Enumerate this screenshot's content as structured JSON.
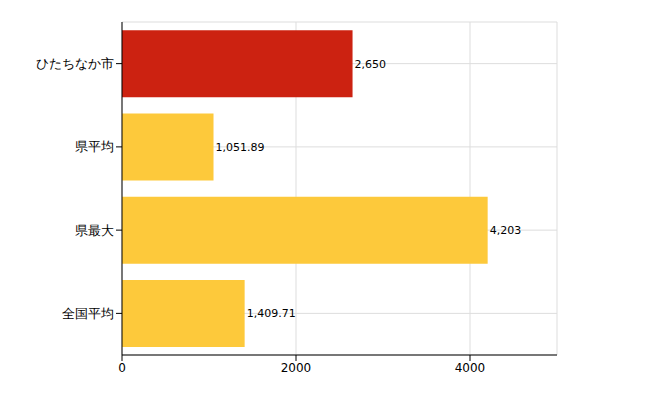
{
  "chart_data": {
    "type": "bar",
    "orientation": "horizontal",
    "categories": [
      "ひたちなか市",
      "県平均",
      "県最大",
      "全国平均"
    ],
    "values": [
      2650,
      1051.89,
      4203,
      1409.71
    ],
    "value_labels": [
      "2,650",
      "1,051.89",
      "4,203",
      "1,409.71"
    ],
    "colors": [
      "#cc2211",
      "#fdc93b",
      "#fdc93b",
      "#fdc93b"
    ],
    "xlim": [
      0,
      5000
    ],
    "xticks": [
      0,
      2000,
      4000
    ],
    "grid": true,
    "data_labels": true
  }
}
